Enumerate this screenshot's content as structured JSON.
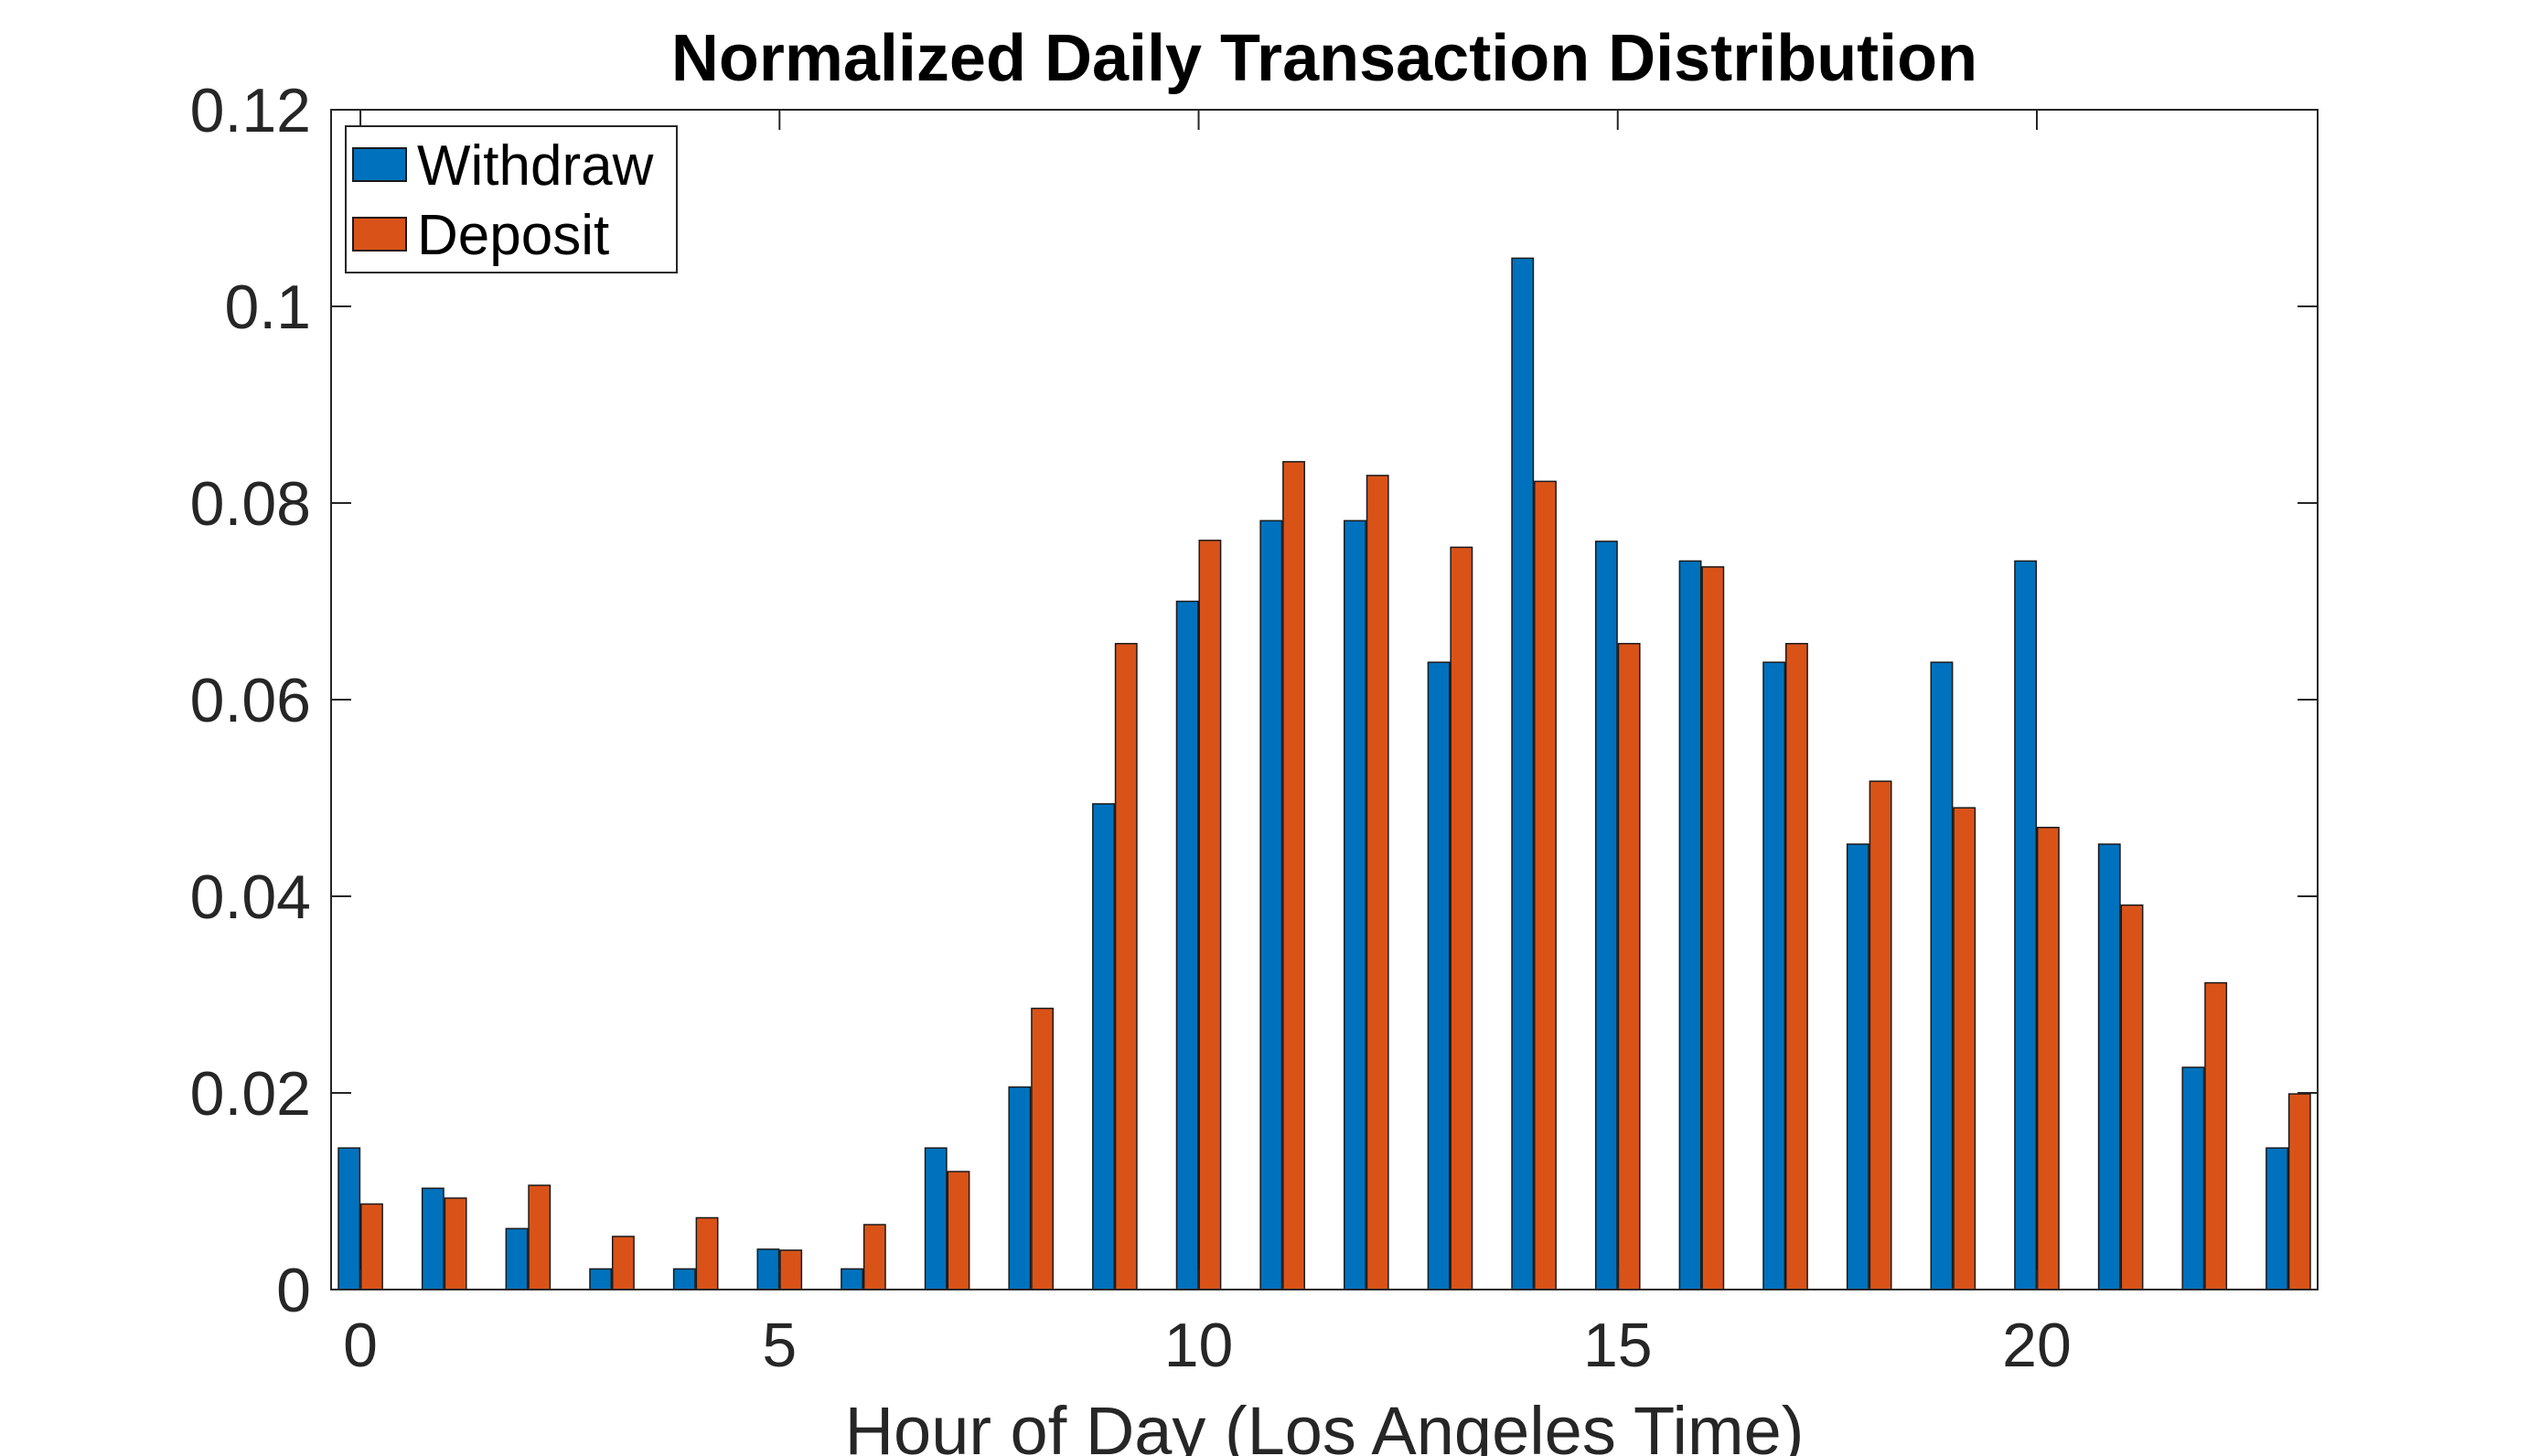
{
  "chart_data": {
    "type": "bar",
    "title": "Normalized Daily Transaction Distribution",
    "xlabel": "Hour of Day (Los Angeles Time)",
    "ylabel": "",
    "categories": [
      0,
      1,
      2,
      3,
      4,
      5,
      6,
      7,
      8,
      9,
      10,
      11,
      12,
      13,
      14,
      15,
      16,
      17,
      18,
      19,
      20,
      21,
      22,
      23
    ],
    "xlim": [
      -0.35,
      23.35
    ],
    "ylim": [
      0,
      0.12
    ],
    "x_ticks": [
      0,
      5,
      10,
      15,
      20
    ],
    "x_tick_labels": [
      "0",
      "5",
      "10",
      "15",
      "20"
    ],
    "y_ticks": [
      0,
      0.02,
      0.04,
      0.06,
      0.08,
      0.1,
      0.12
    ],
    "y_tick_labels": [
      "0",
      "0.02",
      "0.04",
      "0.06",
      "0.08",
      "0.1",
      "0.12"
    ],
    "grid": false,
    "legend_position": "top-left",
    "series": [
      {
        "name": "Withdraw",
        "color": "#0072BD",
        "values": [
          0.0144,
          0.0103,
          0.0062,
          0.0021,
          0.0021,
          0.0041,
          0.0021,
          0.0144,
          0.0206,
          0.0494,
          0.07,
          0.0782,
          0.0782,
          0.0638,
          0.1049,
          0.0761,
          0.0741,
          0.0638,
          0.0453,
          0.0638,
          0.0741,
          0.0453,
          0.0226,
          0.0144
        ]
      },
      {
        "name": "Deposit",
        "color": "#D95319",
        "values": [
          0.0087,
          0.0093,
          0.0106,
          0.0054,
          0.0073,
          0.004,
          0.0066,
          0.012,
          0.0286,
          0.0657,
          0.0762,
          0.0842,
          0.0828,
          0.0755,
          0.0822,
          0.0657,
          0.0735,
          0.0657,
          0.0517,
          0.049,
          0.047,
          0.0391,
          0.0312,
          0.0199
        ]
      }
    ]
  }
}
